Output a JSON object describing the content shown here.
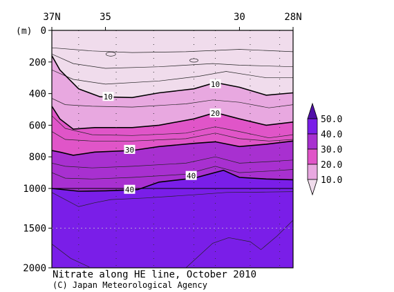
{
  "chart_data": {
    "type": "contour",
    "title": "Nitrate along HE line, October 2010",
    "credit": "(C) Japan Meteorological Agency",
    "y_unit_label": "(m)",
    "x_top_ticks": [
      "37N",
      "35",
      "30",
      "28N"
    ],
    "x_tick_latitudes": [
      37,
      35,
      30,
      28
    ],
    "y_ticks": [
      0,
      200,
      400,
      600,
      800,
      1000,
      1500,
      2000
    ],
    "y_axis_note": "depth axis breaks scale at 1000 m (0-1000 m expanded, 1000-2000 m compressed)",
    "xlim": [
      37,
      28
    ],
    "ylim": [
      0,
      2000
    ],
    "station_latitudes": [
      36.0,
      34.6,
      33.2,
      31.7,
      30.9,
      29.6,
      28.5
    ],
    "colorbar": {
      "labels": [
        "50.0",
        "40.0",
        "30.0",
        "20.0",
        "10.0"
      ],
      "levels": [
        10,
        20,
        30,
        40,
        50
      ],
      "colors": [
        "#f0dcec",
        "#e8a8e0",
        "#e055c8",
        "#a830d0",
        "#7a1ee8",
        "#5010a8"
      ]
    },
    "contour_labels": [
      {
        "text": "10",
        "lat": 34.9,
        "depth": 420
      },
      {
        "text": "10",
        "lat": 30.9,
        "depth": 340
      },
      {
        "text": "20",
        "lat": 30.9,
        "depth": 525
      },
      {
        "text": "30",
        "lat": 34.1,
        "depth": 755
      },
      {
        "text": "40",
        "lat": 31.8,
        "depth": 920
      },
      {
        "text": "40",
        "lat": 34.1,
        "depth": 1015
      }
    ],
    "bold_contours": [
      {
        "value": 10,
        "depths": [
          [
            37,
            160
          ],
          [
            36.7,
            250
          ],
          [
            36.0,
            370
          ],
          [
            35.2,
            420
          ],
          [
            34.0,
            425
          ],
          [
            33.0,
            395
          ],
          [
            31.7,
            370
          ],
          [
            30.9,
            330
          ],
          [
            30.0,
            360
          ],
          [
            29.0,
            410
          ],
          [
            28,
            395
          ]
        ]
      },
      {
        "value": 20,
        "depths": [
          [
            37,
            480
          ],
          [
            36.7,
            560
          ],
          [
            36.2,
            625
          ],
          [
            35.4,
            615
          ],
          [
            34.0,
            615
          ],
          [
            33.0,
            600
          ],
          [
            31.7,
            560
          ],
          [
            30.9,
            520
          ],
          [
            30.0,
            560
          ],
          [
            29.0,
            600
          ],
          [
            28,
            580
          ]
        ]
      },
      {
        "value": 30,
        "depths": [
          [
            37,
            760
          ],
          [
            36.7,
            770
          ],
          [
            36.2,
            790
          ],
          [
            35.4,
            770
          ],
          [
            34.0,
            760
          ],
          [
            33.0,
            735
          ],
          [
            31.7,
            715
          ],
          [
            30.9,
            705
          ],
          [
            30.0,
            735
          ],
          [
            29.0,
            720
          ],
          [
            28,
            700
          ]
        ]
      },
      {
        "value": 40,
        "depths": [
          [
            37,
            1000
          ],
          [
            36.0,
            1035
          ],
          [
            35.0,
            1030
          ],
          [
            33.8,
            1015
          ],
          [
            33.0,
            960
          ],
          [
            31.7,
            935
          ],
          [
            30.6,
            885
          ],
          [
            30.0,
            930
          ],
          [
            29.0,
            940
          ],
          [
            28,
            945
          ]
        ]
      }
    ],
    "thin_contours": [
      {
        "depths": [
          [
            37,
            110
          ],
          [
            35.5,
            130
          ],
          [
            34,
            140
          ],
          [
            32,
            135
          ],
          [
            30,
            120
          ],
          [
            28,
            135
          ]
        ]
      },
      {
        "depths": [
          [
            37,
            150
          ],
          [
            36.2,
            210
          ],
          [
            35,
            240
          ],
          [
            33,
            230
          ],
          [
            31,
            210
          ],
          [
            30,
            220
          ],
          [
            28,
            230
          ]
        ]
      },
      {
        "depths": [
          [
            37,
            250
          ],
          [
            36.2,
            310
          ],
          [
            35,
            340
          ],
          [
            33,
            320
          ],
          [
            31.5,
            290
          ],
          [
            30.5,
            260
          ],
          [
            29,
            300
          ],
          [
            28,
            300
          ]
        ]
      },
      {
        "depths": [
          [
            37,
            430
          ],
          [
            36.5,
            470
          ],
          [
            35.5,
            480
          ],
          [
            34,
            485
          ],
          [
            32,
            465
          ],
          [
            31,
            440
          ],
          [
            30,
            455
          ],
          [
            28.9,
            490
          ],
          [
            28,
            470
          ]
        ]
      },
      {
        "depths": [
          [
            37,
            540
          ],
          [
            36.5,
            620
          ],
          [
            35.5,
            660
          ],
          [
            34,
            665
          ],
          [
            32,
            650
          ],
          [
            30.9,
            610
          ],
          [
            30,
            640
          ],
          [
            28.9,
            680
          ],
          [
            28,
            660
          ]
        ]
      },
      {
        "depths": [
          [
            37,
            640
          ],
          [
            36.5,
            690
          ],
          [
            35.5,
            700
          ],
          [
            34,
            700
          ],
          [
            32,
            685
          ],
          [
            30.9,
            650
          ],
          [
            30,
            685
          ],
          [
            28.9,
            700
          ],
          [
            28,
            690
          ]
        ]
      },
      {
        "depths": [
          [
            37,
            840
          ],
          [
            36.5,
            860
          ],
          [
            35.5,
            870
          ],
          [
            34,
            860
          ],
          [
            32,
            840
          ],
          [
            30.9,
            800
          ],
          [
            30,
            840
          ],
          [
            28.9,
            830
          ],
          [
            28,
            820
          ]
        ]
      },
      {
        "depths": [
          [
            37,
            900
          ],
          [
            36.5,
            935
          ],
          [
            35.5,
            940
          ],
          [
            34,
            930
          ],
          [
            32,
            910
          ],
          [
            30.9,
            860
          ],
          [
            30,
            900
          ],
          [
            28.9,
            890
          ],
          [
            28,
            880
          ]
        ]
      },
      {
        "depths": [
          [
            37,
            1050
          ],
          [
            36,
            1230
          ],
          [
            35.4,
            1180
          ],
          [
            34.8,
            1140
          ],
          [
            33.5,
            1120
          ],
          [
            31.7,
            1080
          ],
          [
            30.5,
            1050
          ],
          [
            29,
            1045
          ],
          [
            28,
            1040
          ]
        ]
      },
      {
        "depths": [
          [
            37,
            1700
          ],
          [
            36.3,
            1880
          ],
          [
            35.6,
            1990
          ]
        ]
      },
      {
        "depths": [
          [
            32.0,
            2000
          ],
          [
            31.0,
            1690
          ],
          [
            30.4,
            1620
          ],
          [
            29.6,
            1670
          ],
          [
            29.2,
            1770
          ],
          [
            28.6,
            1600
          ],
          [
            28,
            1400
          ]
        ]
      }
    ]
  }
}
